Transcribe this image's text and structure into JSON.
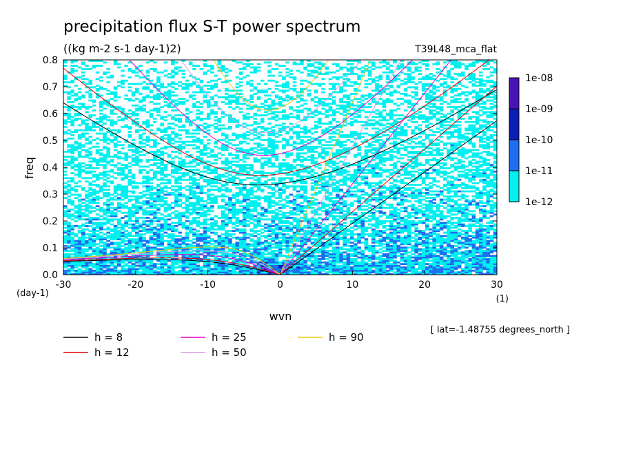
{
  "chart_data": {
    "type": "heatmap",
    "title": "precipitation flux S-T power spectrum",
    "subtitle": "((kg m-2 s-1 day-1)2)",
    "run_label": "T39L48_mca_flat",
    "xlabel": "wvn",
    "ylabel": "freq",
    "x_unit": "(1)",
    "y_unit": "(day-1)",
    "xlim": [
      -30,
      30
    ],
    "ylim": [
      0,
      0.8
    ],
    "x_ticks": [
      -30,
      -20,
      -10,
      0,
      10,
      20,
      30
    ],
    "y_ticks": [
      0.0,
      0.1,
      0.2,
      0.3,
      0.4,
      0.5,
      0.6,
      0.7,
      0.8
    ],
    "x_tick_labels": [
      "-30",
      "-20",
      "-10",
      "0",
      "10",
      "20",
      "30"
    ],
    "y_tick_labels": [
      "0.0",
      "0.1",
      "0.2",
      "0.3",
      "0.4",
      "0.5",
      "0.6",
      "0.7",
      "0.8"
    ],
    "colorbar": {
      "levels": [
        "1e-08",
        "1e-09",
        "1e-10",
        "1e-11",
        "1e-12"
      ],
      "colors": [
        "#4a14b4",
        "#0a1eb4",
        "#1e6ef0",
        "#00f0f0"
      ]
    },
    "dispersion_curves": [
      {
        "h": 8,
        "label": "h =  8",
        "color": "#000000"
      },
      {
        "h": 12,
        "label": "h = 12",
        "color": "#e60000"
      },
      {
        "h": 25,
        "label": "h = 25",
        "color": "#e600c8"
      },
      {
        "h": 50,
        "label": "h = 50",
        "color": "#d89ae0"
      },
      {
        "h": 90,
        "label": "h = 90",
        "color": "#f0c800"
      }
    ],
    "footnote": "[ lat=-1.48755 degrees_north ]"
  }
}
